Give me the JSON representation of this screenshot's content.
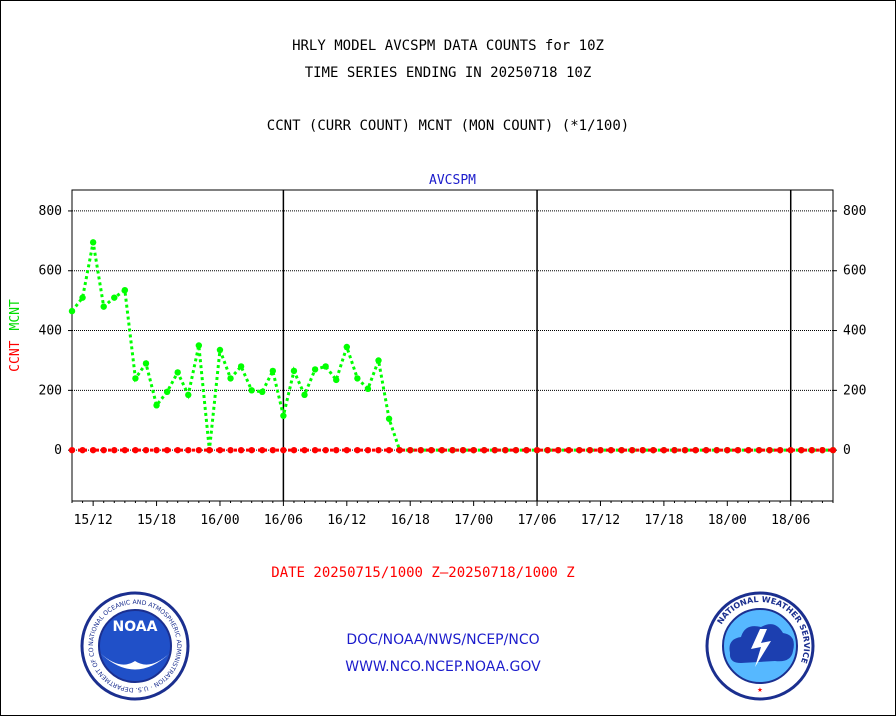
{
  "title": {
    "line1": "HRLY MODEL AVCSPM DATA COUNTS for 10Z",
    "line2": "TIME SERIES ENDING IN 20250718 10Z",
    "line3": "CCNT (CURR COUNT) MCNT (MON COUNT) (*1/100)"
  },
  "chart_data": {
    "type": "line",
    "title": "AVCSPM",
    "ylabel_parts": [
      "CCNT",
      "MCNT"
    ],
    "ylim": [
      -170,
      870
    ],
    "yticks": [
      0,
      200,
      400,
      600,
      800
    ],
    "grid": true,
    "x_start_hour": 10,
    "x_end_hour": 82,
    "xtick_hours": [
      12,
      18,
      24,
      30,
      36,
      42,
      48,
      54,
      60,
      66,
      72,
      78
    ],
    "xtick_labels": [
      "15/12",
      "15/18",
      "16/00",
      "16/06",
      "16/12",
      "16/18",
      "17/00",
      "17/06",
      "17/12",
      "17/18",
      "18/00",
      "18/06"
    ],
    "vertical_day_lines_hours": [
      30,
      54,
      78
    ],
    "series": [
      {
        "name": "CCNT",
        "color": "#ff0000",
        "x": [
          10,
          11,
          12,
          13,
          14,
          15,
          16,
          17,
          18,
          19,
          20,
          21,
          22,
          23,
          24,
          25,
          26,
          27,
          28,
          29,
          30,
          31,
          32,
          33,
          34,
          35,
          36,
          37,
          38,
          39,
          40,
          41,
          42,
          43,
          44,
          45,
          46,
          47,
          48,
          49,
          50,
          51,
          52,
          53,
          54,
          55,
          56,
          57,
          58,
          59,
          60,
          61,
          62,
          63,
          64,
          65,
          66,
          67,
          68,
          69,
          70,
          71,
          72,
          73,
          74,
          75,
          76,
          77,
          78,
          79,
          80,
          81,
          82
        ],
        "values": [
          0,
          0,
          0,
          0,
          0,
          0,
          0,
          0,
          0,
          0,
          0,
          0,
          0,
          0,
          0,
          0,
          0,
          0,
          0,
          0,
          0,
          0,
          0,
          0,
          0,
          0,
          0,
          0,
          0,
          0,
          0,
          0,
          0,
          0,
          0,
          0,
          0,
          0,
          0,
          0,
          0,
          0,
          0,
          0,
          0,
          0,
          0,
          0,
          0,
          0,
          0,
          0,
          0,
          0,
          0,
          0,
          0,
          0,
          0,
          0,
          0,
          0,
          0,
          0,
          0,
          0,
          0,
          0,
          0,
          0,
          0,
          0,
          0
        ]
      },
      {
        "name": "MCNT",
        "color": "#00ff00",
        "x": [
          10,
          11,
          12,
          13,
          14,
          15,
          16,
          17,
          18,
          19,
          20,
          21,
          22,
          23,
          24,
          25,
          26,
          27,
          28,
          29,
          30,
          31,
          32,
          33,
          34,
          35,
          36,
          37,
          38,
          39,
          40,
          41,
          42,
          43,
          44,
          45,
          46,
          47,
          48,
          49,
          50,
          51,
          52,
          53,
          54,
          55,
          56,
          57,
          58,
          59,
          60,
          61,
          62,
          63,
          64,
          65,
          66,
          67,
          68,
          69,
          70,
          71,
          72,
          73,
          74,
          75,
          76,
          77,
          78,
          79,
          80,
          81,
          82
        ],
        "values": [
          465,
          510,
          695,
          480,
          510,
          535,
          240,
          290,
          150,
          195,
          260,
          185,
          350,
          0,
          335,
          240,
          280,
          200,
          195,
          265,
          115,
          265,
          185,
          270,
          280,
          235,
          345,
          240,
          205,
          300,
          105,
          0,
          0,
          0,
          0,
          0,
          0,
          0,
          0,
          0,
          0,
          0,
          0,
          0,
          0,
          0,
          0,
          0,
          0,
          0,
          0,
          0,
          0,
          0,
          0,
          0,
          0,
          0,
          0,
          0,
          0,
          0,
          0,
          0,
          0,
          0,
          0,
          0,
          0,
          0,
          0,
          0,
          0
        ]
      }
    ]
  },
  "date_range": {
    "left": "DATE 20250715/1000 Z",
    "right": "20250718/1000 Z",
    "dash": "–",
    "color": "#ff0000"
  },
  "footer": {
    "line1": "DOC/NOAA/NWS/NCEP/NCO",
    "line2": "WWW.NCO.NCEP.NOAA.GOV",
    "color": "#1c1ccc"
  },
  "logos": {
    "left": {
      "icon": "noaa-logo-icon",
      "text": "NOAA",
      "ring_text": "NATIONAL OCEANIC AND ATMOSPHERIC ADMINISTRATION · U.S. DEPARTMENT OF COMMERCE ·"
    },
    "right": {
      "icon": "nws-logo-icon",
      "ring_text": "NATIONAL WEATHER SERVICE"
    }
  }
}
